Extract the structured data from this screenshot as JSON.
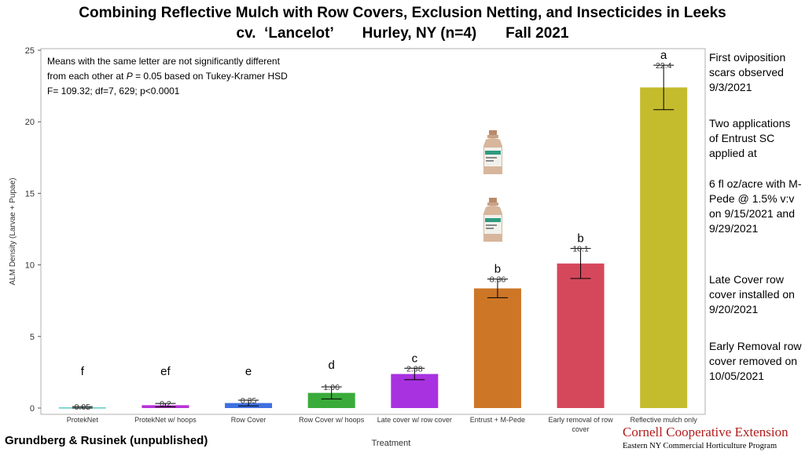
{
  "header": {
    "title_line1": "Combining Reflective Mulch with Row Covers, Exclusion Netting, and Insecticides in Leeks",
    "title_line2": "cv.  ‘Lancelot’       Hurley, NY (n=4)       Fall 2021"
  },
  "stats_note": {
    "line1": "Means with the same letter are not significantly different",
    "line2_pre": "from each other at ",
    "line2_p": "P",
    "line2_post": " = 0.05 based on Tukey-Kramer HSD",
    "line3": "F= 109.32; df=7, 629; p<0.0001"
  },
  "side_notes": {
    "oviposition": "First oviposition scars observed 9/3/2021",
    "entrust_a": "Two applications of Entrust SC applied at",
    "entrust_b": "6 fl oz/acre with M-Pede @ 1.5% v:v on 9/15/2021 and 9/29/2021",
    "late_cover": "Late Cover row cover installed on 9/20/2021",
    "early_removal": "Early Removal row cover removed on 10/05/2021"
  },
  "footer": {
    "authors": "Grundberg & Rusinek (unpublished)",
    "org": "Cornell Cooperative Extension",
    "program": "Eastern NY Commercial Horticulture Program"
  },
  "chart_data": {
    "type": "bar",
    "xlabel": "Treatment",
    "ylabel": "ALM Density (Larvae + Pupae)",
    "ylim": [
      0,
      25
    ],
    "yticks": [
      0,
      5,
      10,
      15,
      20,
      25
    ],
    "grid": false,
    "categories": [
      "ProtekNet",
      "ProtekNet w/ hoops",
      "Row Cover",
      "Row Cover w/ hoops",
      "Late cover w/ row cover",
      "Entrust + M-Pede",
      "Early removal of row cover",
      "Reflective mulch only"
    ],
    "values": [
      0.05,
      0.2,
      0.35,
      1.06,
      2.38,
      8.36,
      10.1,
      22.4
    ],
    "value_labels": [
      "0.05",
      "0.2",
      "0.35",
      "1.06",
      "2.38",
      "8.36",
      "10.1",
      "22.4"
    ],
    "errors": [
      0.05,
      0.12,
      0.2,
      0.42,
      0.4,
      0.65,
      1.05,
      1.55
    ],
    "letters": [
      "f",
      "ef",
      "e",
      "d",
      "c",
      "b",
      "b",
      "a"
    ],
    "colors": [
      "#5fc9c4",
      "#b832d6",
      "#3f6fe0",
      "#3aab3a",
      "#a932e0",
      "#cd7626",
      "#d5485c",
      "#c4bc2c"
    ],
    "images": [
      "Entrust SC bottle",
      "Entrust SC bottle"
    ]
  }
}
